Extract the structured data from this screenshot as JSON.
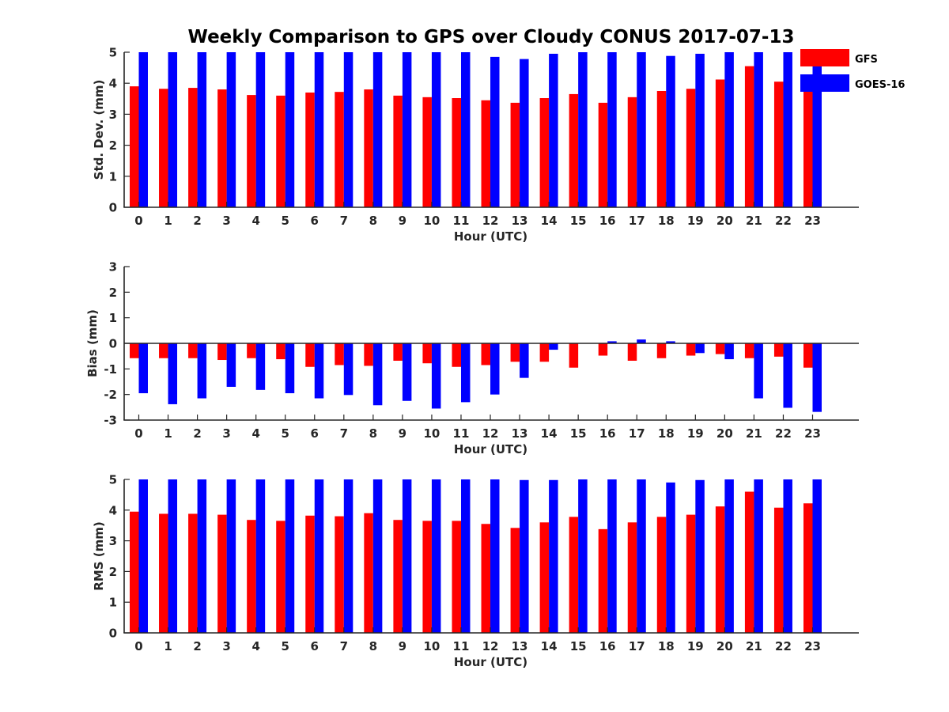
{
  "chart_data": {
    "type": "bar",
    "title": "Weekly Comparison to GPS over Cloudy CONUS 2017-07-13",
    "legend": {
      "placement": "top-right",
      "entries": [
        {
          "name": "GFS",
          "color": "#ff0000"
        },
        {
          "name": "GOES-16",
          "color": "#0000ff"
        }
      ]
    },
    "panels": [
      {
        "ylabel": "Std. Dev. (mm)",
        "xlabel": "Hour (UTC)",
        "ylim": [
          0,
          5
        ],
        "yticks": [
          0,
          1,
          2,
          3,
          4,
          5
        ],
        "categories": [
          "0",
          "1",
          "2",
          "3",
          "4",
          "5",
          "6",
          "7",
          "8",
          "9",
          "10",
          "11",
          "12",
          "13",
          "14",
          "15",
          "16",
          "17",
          "18",
          "19",
          "20",
          "21",
          "22",
          "23"
        ],
        "series": [
          {
            "name": "GFS",
            "color": "#ff0000",
            "values": [
              3.9,
              3.82,
              3.85,
              3.8,
              3.62,
              3.6,
              3.7,
              3.72,
              3.8,
              3.6,
              3.55,
              3.52,
              3.45,
              3.37,
              3.52,
              3.65,
              3.37,
              3.55,
              3.75,
              3.82,
              4.12,
              4.55,
              4.05,
              3.9
            ]
          },
          {
            "name": "GOES-16",
            "color": "#0000ff",
            "values": [
              5,
              5,
              5,
              5,
              5,
              5,
              5,
              5,
              5,
              5,
              5,
              5,
              4.85,
              4.78,
              4.95,
              5,
              5,
              5,
              4.88,
              4.95,
              5,
              5,
              5,
              5
            ]
          }
        ]
      },
      {
        "ylabel": "Bias (mm)",
        "xlabel": "Hour (UTC)",
        "ylim": [
          -3,
          3
        ],
        "yticks": [
          -3,
          -2,
          -1,
          0,
          1,
          2,
          3
        ],
        "categories": [
          "0",
          "1",
          "2",
          "3",
          "4",
          "5",
          "6",
          "7",
          "8",
          "9",
          "10",
          "11",
          "12",
          "13",
          "14",
          "15",
          "16",
          "17",
          "18",
          "19",
          "20",
          "21",
          "22",
          "23"
        ],
        "series": [
          {
            "name": "GFS",
            "color": "#ff0000",
            "values": [
              -0.58,
              -0.58,
              -0.58,
              -0.65,
              -0.58,
              -0.62,
              -0.92,
              -0.85,
              -0.88,
              -0.68,
              -0.78,
              -0.92,
              -0.85,
              -0.72,
              -0.72,
              -0.95,
              -0.48,
              -0.68,
              -0.58,
              -0.48,
              -0.42,
              -0.58,
              -0.52,
              -0.95
            ]
          },
          {
            "name": "GOES-16",
            "color": "#0000ff",
            "values": [
              -1.95,
              -2.38,
              -2.15,
              -1.7,
              -1.82,
              -1.95,
              -2.15,
              -2.02,
              -2.42,
              -2.25,
              -2.55,
              -2.3,
              -2.0,
              -1.35,
              -0.25,
              null,
              0.08,
              0.15,
              0.08,
              -0.38,
              -0.62,
              -2.15,
              -2.52,
              -2.68
            ]
          }
        ]
      },
      {
        "ylabel": "RMS (mm)",
        "xlabel": "Hour (UTC)",
        "ylim": [
          0,
          5
        ],
        "yticks": [
          0,
          1,
          2,
          3,
          4,
          5
        ],
        "categories": [
          "0",
          "1",
          "2",
          "3",
          "4",
          "5",
          "6",
          "7",
          "8",
          "9",
          "10",
          "11",
          "12",
          "13",
          "14",
          "15",
          "16",
          "17",
          "18",
          "19",
          "20",
          "21",
          "22",
          "23"
        ],
        "series": [
          {
            "name": "GFS",
            "color": "#ff0000",
            "values": [
              3.95,
              3.88,
              3.88,
              3.85,
              3.68,
              3.65,
              3.82,
              3.8,
              3.9,
              3.68,
              3.65,
              3.65,
              3.55,
              3.42,
              3.6,
              3.78,
              3.38,
              3.6,
              3.78,
              3.85,
              4.12,
              4.6,
              4.08,
              4.22
            ]
          },
          {
            "name": "GOES-16",
            "color": "#0000ff",
            "values": [
              5,
              5,
              5,
              5,
              5,
              5,
              5,
              5,
              5,
              5,
              5,
              5,
              5,
              4.98,
              4.98,
              5,
              5,
              5,
              4.9,
              4.98,
              5,
              5,
              5,
              5
            ]
          }
        ]
      }
    ]
  }
}
